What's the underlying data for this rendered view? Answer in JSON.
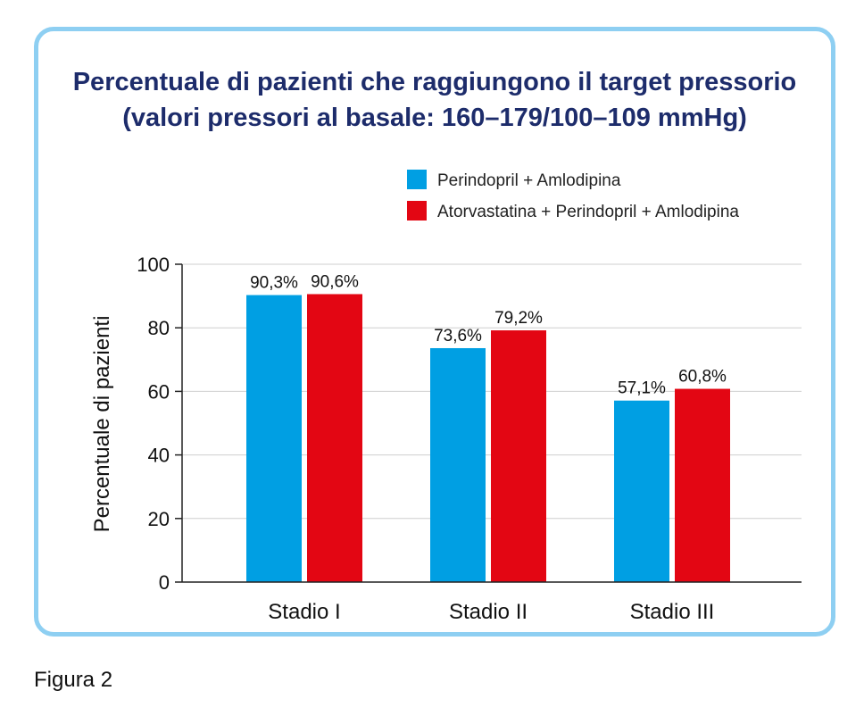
{
  "chart_data": {
    "type": "bar",
    "title_lines": [
      "Percentuale di pazienti che raggiungono il target pressorio",
      "(valori pressori al basale: 160–179/100–109 mmHg)"
    ],
    "ylabel": "Percentuale di pazienti",
    "xlabel": "",
    "ylim": [
      0,
      100
    ],
    "yticks": [
      0,
      20,
      40,
      60,
      80,
      100
    ],
    "grid": true,
    "legend_position": "top-right",
    "categories": [
      "Stadio I",
      "Stadio II",
      "Stadio III"
    ],
    "series": [
      {
        "name": "Perindopril + Amlodipina",
        "color": "#009fe3",
        "values": [
          90.3,
          73.6,
          57.1
        ],
        "labels": [
          "90,3%",
          "73,6%",
          "57,1%"
        ]
      },
      {
        "name": "Atorvastatina + Perindopril + Amlodipina",
        "color": "#e30613",
        "values": [
          90.6,
          79.2,
          60.8
        ],
        "labels": [
          "90,6%",
          "79,2%",
          "60,8%"
        ]
      }
    ]
  },
  "caption": "Figura 2"
}
